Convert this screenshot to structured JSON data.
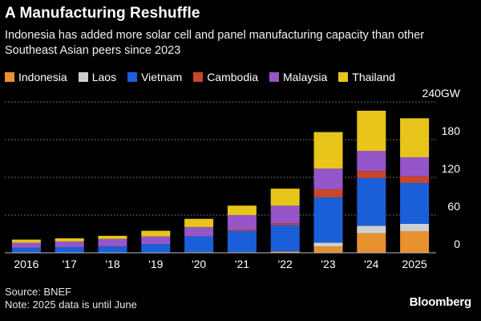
{
  "title": "A Manufacturing Reshuffle",
  "subtitle": "Indonesia has added more solar cell and panel manufacturing capacity than other Southeast Asian peers since 2023",
  "source": "Source: BNEF",
  "note": "Note: 2025 data is until June",
  "brand": "Bloomberg",
  "colors": {
    "Indonesia": "#e8912f",
    "Laos": "#cfcfcf",
    "Vietnam": "#1a5fd8",
    "Cambodia": "#c8462c",
    "Malaysia": "#9656c9",
    "Thailand": "#e8c51a"
  },
  "chart_data": {
    "type": "bar",
    "stacked": true,
    "categories": [
      "2016",
      "'17",
      "'18",
      "'19",
      "'20",
      "'21",
      "'22",
      "'23",
      "'24",
      "2025"
    ],
    "series": [
      {
        "name": "Indonesia",
        "values": [
          0,
          0,
          0,
          0,
          1,
          1,
          2,
          10,
          31,
          34
        ]
      },
      {
        "name": "Laos",
        "values": [
          0,
          0,
          0,
          0,
          0,
          0,
          0,
          6,
          12,
          12
        ]
      },
      {
        "name": "Vietnam",
        "values": [
          8,
          9,
          10,
          14,
          25,
          34,
          42,
          72,
          76,
          65
        ]
      },
      {
        "name": "Cambodia",
        "values": [
          0,
          0,
          0,
          0,
          0,
          2,
          3,
          13,
          11,
          11
        ]
      },
      {
        "name": "Malaysia",
        "values": [
          8,
          9,
          12,
          12,
          15,
          23,
          28,
          33,
          32,
          30
        ]
      },
      {
        "name": "Thailand",
        "values": [
          5,
          5,
          5,
          9,
          13,
          15,
          27,
          58,
          64,
          62
        ]
      }
    ],
    "ylim": [
      0,
      240
    ],
    "yticks": [
      {
        "value": 0,
        "label": "0"
      },
      {
        "value": 60,
        "label": "60"
      },
      {
        "value": 120,
        "label": "120"
      },
      {
        "value": 180,
        "label": "180"
      },
      {
        "value": 240,
        "label": "240GW"
      }
    ],
    "xlabel": "",
    "ylabel": "",
    "grid": true
  }
}
